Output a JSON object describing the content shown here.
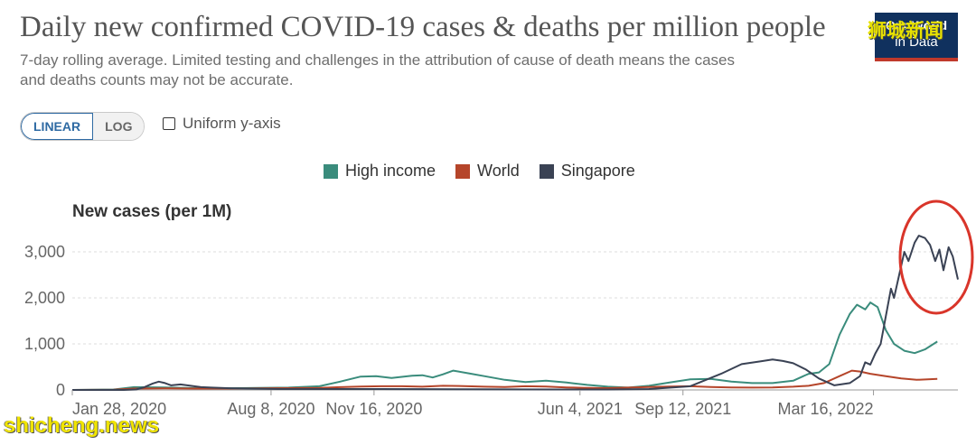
{
  "header": {
    "title": "Daily new confirmed COVID-19 cases & deaths per million people",
    "subtitle_line1": "7-day rolling average. Limited testing and challenges in the attribution of cause of death means the cases",
    "subtitle_line2": "and deaths counts may not be accurate."
  },
  "logo": {
    "line1": "Our World",
    "line2": "in Data",
    "color": "#10315e",
    "accent": "#c0392b"
  },
  "controls": {
    "scale_linear": "LINEAR",
    "scale_log": "LOG",
    "uniform_axis": "Uniform y-axis"
  },
  "watermarks": {
    "top": "狮城新闻",
    "bottom": "shicheng.news"
  },
  "colors": {
    "high_income": "#3a8c7c",
    "world": "#b5452a",
    "singapore": "#3a4254",
    "highlight": "#d9352a",
    "grid": "#dddddd"
  },
  "chart_data": {
    "type": "line",
    "title": "New cases (per 1M)",
    "ylabel": "New cases (per 1M)",
    "ylim": [
      0,
      3000
    ],
    "yticks": [
      0,
      1000,
      2000,
      3000
    ],
    "ytick_labels": [
      "0",
      "1,000",
      "2,000",
      "3,000"
    ],
    "xticks": [
      {
        "day": 0,
        "label": "Jan 28, 2020"
      },
      {
        "day": 193,
        "label": "Aug 8, 2020"
      },
      {
        "day": 293,
        "label": "Nov 16, 2020"
      },
      {
        "day": 493,
        "label": "Jun 4, 2021"
      },
      {
        "day": 593,
        "label": "Sep 12, 2021"
      },
      {
        "day": 778,
        "label": "Mar 16, 2022"
      }
    ],
    "x_unit": "days since Jan 28, 2020",
    "series": [
      {
        "name": "High income",
        "color": "#3a8c7c",
        "points": [
          [
            0,
            0
          ],
          [
            40,
            10
          ],
          [
            60,
            60
          ],
          [
            90,
            55
          ],
          [
            120,
            40
          ],
          [
            150,
            35
          ],
          [
            180,
            45
          ],
          [
            210,
            50
          ],
          [
            240,
            80
          ],
          [
            260,
            180
          ],
          [
            280,
            290
          ],
          [
            295,
            300
          ],
          [
            310,
            260
          ],
          [
            330,
            310
          ],
          [
            340,
            320
          ],
          [
            350,
            270
          ],
          [
            360,
            340
          ],
          [
            370,
            420
          ],
          [
            385,
            360
          ],
          [
            400,
            300
          ],
          [
            420,
            220
          ],
          [
            440,
            170
          ],
          [
            460,
            200
          ],
          [
            480,
            160
          ],
          [
            500,
            110
          ],
          [
            520,
            70
          ],
          [
            540,
            50
          ],
          [
            560,
            90
          ],
          [
            580,
            160
          ],
          [
            600,
            230
          ],
          [
            620,
            240
          ],
          [
            640,
            180
          ],
          [
            660,
            150
          ],
          [
            680,
            150
          ],
          [
            700,
            200
          ],
          [
            715,
            350
          ],
          [
            725,
            380
          ],
          [
            735,
            560
          ],
          [
            745,
            1200
          ],
          [
            755,
            1650
          ],
          [
            762,
            1850
          ],
          [
            770,
            1750
          ],
          [
            775,
            1900
          ],
          [
            782,
            1800
          ],
          [
            790,
            1300
          ],
          [
            798,
            1000
          ],
          [
            808,
            850
          ],
          [
            818,
            800
          ],
          [
            828,
            880
          ],
          [
            840,
            1050
          ]
        ]
      },
      {
        "name": "World",
        "color": "#b5452a",
        "points": [
          [
            0,
            0
          ],
          [
            40,
            5
          ],
          [
            60,
            30
          ],
          [
            90,
            35
          ],
          [
            120,
            30
          ],
          [
            150,
            30
          ],
          [
            180,
            35
          ],
          [
            210,
            40
          ],
          [
            240,
            45
          ],
          [
            260,
            60
          ],
          [
            280,
            75
          ],
          [
            300,
            80
          ],
          [
            320,
            80
          ],
          [
            340,
            70
          ],
          [
            360,
            90
          ],
          [
            380,
            85
          ],
          [
            400,
            70
          ],
          [
            420,
            65
          ],
          [
            440,
            80
          ],
          [
            460,
            75
          ],
          [
            480,
            55
          ],
          [
            500,
            45
          ],
          [
            520,
            40
          ],
          [
            540,
            50
          ],
          [
            560,
            65
          ],
          [
            580,
            75
          ],
          [
            600,
            80
          ],
          [
            620,
            65
          ],
          [
            640,
            55
          ],
          [
            660,
            50
          ],
          [
            680,
            55
          ],
          [
            700,
            70
          ],
          [
            715,
            90
          ],
          [
            730,
            150
          ],
          [
            745,
            300
          ],
          [
            757,
            420
          ],
          [
            765,
            400
          ],
          [
            775,
            350
          ],
          [
            790,
            300
          ],
          [
            805,
            250
          ],
          [
            820,
            220
          ],
          [
            840,
            240
          ]
        ]
      },
      {
        "name": "Singapore",
        "color": "#3a4254",
        "points": [
          [
            0,
            0
          ],
          [
            50,
            0
          ],
          [
            62,
            10
          ],
          [
            70,
            60
          ],
          [
            78,
            140
          ],
          [
            84,
            180
          ],
          [
            90,
            150
          ],
          [
            96,
            100
          ],
          [
            105,
            120
          ],
          [
            115,
            90
          ],
          [
            125,
            60
          ],
          [
            135,
            50
          ],
          [
            150,
            40
          ],
          [
            170,
            30
          ],
          [
            200,
            20
          ],
          [
            250,
            20
          ],
          [
            300,
            20
          ],
          [
            380,
            15
          ],
          [
            470,
            10
          ],
          [
            520,
            10
          ],
          [
            560,
            20
          ],
          [
            600,
            80
          ],
          [
            630,
            350
          ],
          [
            650,
            560
          ],
          [
            668,
            620
          ],
          [
            680,
            660
          ],
          [
            690,
            630
          ],
          [
            700,
            580
          ],
          [
            712,
            450
          ],
          [
            725,
            250
          ],
          [
            740,
            100
          ],
          [
            755,
            150
          ],
          [
            765,
            300
          ],
          [
            770,
            600
          ],
          [
            775,
            550
          ],
          [
            780,
            800
          ],
          [
            785,
            1000
          ],
          [
            790,
            1600
          ],
          [
            795,
            2200
          ],
          [
            798,
            2000
          ],
          [
            803,
            2500
          ],
          [
            808,
            3000
          ],
          [
            812,
            2800
          ],
          [
            818,
            3200
          ],
          [
            822,
            3350
          ],
          [
            828,
            3300
          ],
          [
            833,
            3150
          ],
          [
            838,
            2800
          ],
          [
            842,
            3050
          ],
          [
            846,
            2600
          ],
          [
            851,
            3100
          ],
          [
            855,
            2900
          ],
          [
            860,
            2400
          ]
        ]
      }
    ]
  }
}
